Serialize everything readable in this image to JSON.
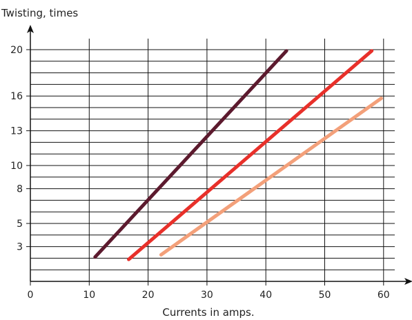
{
  "chart_data": {
    "type": "line",
    "title": "",
    "ylabel": "Twisting, times",
    "xlabel": "Currents in amps.",
    "xlim": [
      0,
      62
    ],
    "ylim": [
      0,
      21
    ],
    "x_ticks": [
      0,
      10,
      20,
      30,
      40,
      50,
      60
    ],
    "y_ticks": [
      3,
      5,
      8,
      10,
      13,
      16,
      20
    ],
    "y_gridlines": [
      1,
      2,
      3,
      4,
      5,
      6,
      7,
      8,
      9,
      10,
      11,
      12,
      13,
      14,
      15,
      16,
      17,
      18,
      19,
      20
    ],
    "x_tick_labels": [
      "0",
      "10",
      "20",
      "30",
      "40",
      "50",
      "60"
    ],
    "y_tick_labels": [
      "3",
      "5",
      "8",
      "10",
      "13",
      "16",
      "20"
    ],
    "grid": true,
    "legend": "none",
    "series": [
      {
        "color": "#5c1a2e",
        "x": [
          11,
          43.5
        ],
        "y": [
          2.1,
          19.9
        ]
      },
      {
        "color": "#e8302a",
        "x": [
          16.7,
          58
        ],
        "y": [
          1.9,
          19.9
        ]
      },
      {
        "color": "#f3a07a",
        "x": [
          22.2,
          59.6
        ],
        "y": [
          2.3,
          15.8
        ]
      }
    ]
  }
}
